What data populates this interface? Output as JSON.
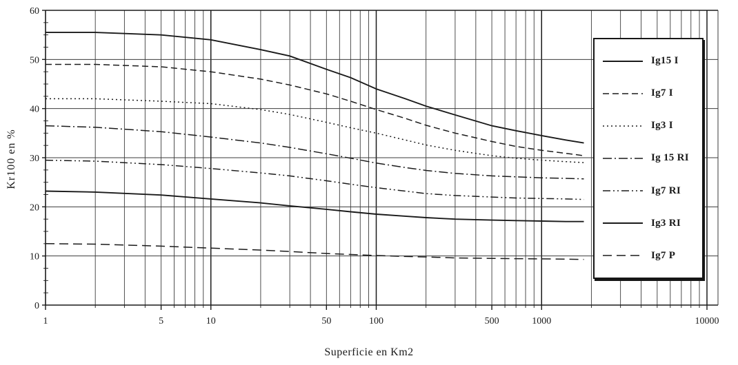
{
  "figure": {
    "background": "#ffffff",
    "ink": "#1a1a1a",
    "grid_color": "#3a3a3a"
  },
  "chart_data": {
    "type": "line",
    "title": "",
    "xlabel": "Superficie en Km2",
    "ylabel": "Kr100 en %",
    "x_scale": "log",
    "xlim": [
      1,
      10000
    ],
    "ylim": [
      0,
      60
    ],
    "x_tick_labels": [
      1,
      5,
      10,
      50,
      100,
      500,
      1000,
      10000
    ],
    "y_tick_labels": [
      0,
      10,
      20,
      30,
      40,
      50,
      60
    ],
    "grid": "full log minor grid on x, major grid on y",
    "legend_position": "inside right",
    "x": [
      1,
      2,
      5,
      10,
      20,
      30,
      50,
      70,
      100,
      150,
      200,
      300,
      500,
      700,
      1000,
      1400,
      1800
    ],
    "series": [
      {
        "name": "Ig15 I",
        "dash": "solid",
        "values": [
          55.5,
          55.5,
          55.0,
          54.0,
          52.0,
          50.7,
          48.0,
          46.3,
          44.0,
          42.0,
          40.5,
          38.7,
          36.5,
          35.5,
          34.5,
          33.6,
          33.0
        ]
      },
      {
        "name": "Ig7 I",
        "dash": "dashed",
        "values": [
          49.0,
          49.0,
          48.5,
          47.5,
          46.0,
          44.8,
          43.0,
          41.5,
          39.8,
          38.0,
          36.6,
          35.0,
          33.3,
          32.3,
          31.5,
          30.9,
          30.4
        ]
      },
      {
        "name": "Ig3 I",
        "dash": "dotted",
        "values": [
          42.0,
          42.0,
          41.5,
          41.0,
          39.8,
          38.8,
          37.2,
          36.1,
          35.0,
          33.6,
          32.6,
          31.5,
          30.4,
          29.9,
          29.5,
          29.2,
          29.0
        ]
      },
      {
        "name": "Ig 15 RI",
        "dash": "dashdot",
        "values": [
          36.5,
          36.2,
          35.3,
          34.2,
          33.0,
          32.1,
          30.8,
          29.9,
          28.9,
          28.0,
          27.4,
          26.8,
          26.3,
          26.1,
          25.9,
          25.8,
          25.7
        ]
      },
      {
        "name": "Ig7 RI",
        "dash": "dashdotdot",
        "values": [
          29.5,
          29.3,
          28.6,
          27.8,
          26.9,
          26.3,
          25.3,
          24.6,
          23.9,
          23.2,
          22.7,
          22.3,
          22.0,
          21.8,
          21.7,
          21.6,
          21.5
        ]
      },
      {
        "name": "Ig3 RI",
        "dash": "solid",
        "values": [
          23.2,
          23.0,
          22.4,
          21.6,
          20.8,
          20.2,
          19.5,
          19.0,
          18.5,
          18.1,
          17.8,
          17.5,
          17.3,
          17.2,
          17.1,
          17.0,
          17.0
        ]
      },
      {
        "name": "Ig7 P",
        "dash": "longdash",
        "values": [
          12.5,
          12.4,
          12.0,
          11.6,
          11.2,
          10.9,
          10.5,
          10.3,
          10.1,
          9.9,
          9.8,
          9.6,
          9.5,
          9.45,
          9.4,
          9.35,
          9.3
        ]
      }
    ]
  }
}
